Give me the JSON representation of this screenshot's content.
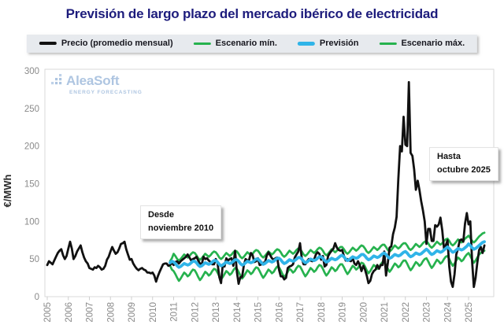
{
  "title": "Previsión de largo plazo del mercado ibérico de electricidad",
  "colors": {
    "title": "#1d1c7c",
    "price": "#111111",
    "forecast": "#30b4e8",
    "scenario": "#26b24e",
    "axis_text": "#8a8a8a",
    "plot_border": "#d9d9d9"
  },
  "watermark": {
    "name": "AleaSoft",
    "subtitle": "ENERGY FORECASTING"
  },
  "legend": {
    "items": [
      {
        "label": "Precio (promedio mensual)",
        "color": "#111111",
        "thickness": 4
      },
      {
        "label": "Escenario mín.",
        "color": "#26b24e",
        "thickness": 3
      },
      {
        "label": "Previsión",
        "color": "#30b4e8",
        "thickness": 5
      },
      {
        "label": "Escenario máx.",
        "color": "#26b24e",
        "thickness": 3
      }
    ]
  },
  "chart_data": {
    "type": "line",
    "title": "Previsión de largo plazo del mercado ibérico de electricidad",
    "xlabel": "",
    "ylabel": "€/MWh",
    "ylim": [
      0,
      300
    ],
    "yticks": [
      0,
      50,
      100,
      150,
      200,
      250,
      300
    ],
    "xticks": [
      2005,
      2006,
      2007,
      2008,
      2009,
      2010,
      2011,
      2012,
      2013,
      2014,
      2015,
      2016,
      2017,
      2018,
      2019,
      2020,
      2021,
      2022,
      2023,
      2024,
      2025
    ],
    "x_resolution": "monthly",
    "grid": false,
    "legend_position": "top",
    "annotations": [
      {
        "line1": "Desde",
        "line2": "noviembre 2010"
      },
      {
        "line1": "Hasta",
        "line2": "octubre 2025"
      }
    ],
    "series": [
      {
        "name": "Escenario mín.",
        "color": "#26b24e",
        "width": 2.7,
        "start_year": 2010,
        "start_month": 11,
        "values": [
          41,
          36,
          34,
          30,
          25,
          21,
          24,
          28,
          32,
          30,
          27,
          29,
          33,
          36,
          35,
          31,
          26,
          22,
          25,
          29,
          33,
          31,
          28,
          30,
          34,
          37,
          36,
          32,
          27,
          23,
          26,
          30,
          34,
          32,
          29,
          31,
          35,
          38,
          37,
          33,
          28,
          24,
          27,
          31,
          35,
          33,
          30,
          32,
          36,
          39,
          38,
          34,
          29,
          25,
          28,
          32,
          36,
          34,
          31,
          33,
          37,
          40,
          39,
          35,
          30,
          26,
          29,
          33,
          37,
          35,
          32,
          34,
          38,
          41,
          40,
          36,
          31,
          27,
          30,
          34,
          38,
          36,
          33,
          35,
          39,
          42,
          41,
          37,
          32,
          28,
          31,
          35,
          39,
          37,
          34,
          36,
          40,
          43,
          43,
          39,
          34,
          30,
          33,
          37,
          41,
          39,
          36,
          38,
          42,
          45,
          44,
          40,
          35,
          31,
          34,
          38,
          42,
          40,
          37,
          39,
          43,
          46,
          46,
          42,
          37,
          33,
          36,
          40,
          44,
          42,
          39,
          41,
          45,
          48,
          48,
          44,
          39,
          35,
          38,
          42,
          46,
          44,
          41,
          43,
          47,
          50,
          51,
          47,
          42,
          38,
          41,
          45,
          49,
          47,
          44,
          46,
          50,
          53,
          54,
          50,
          45,
          41,
          44,
          48,
          52,
          50,
          47,
          49,
          53,
          56,
          58,
          54,
          49,
          45,
          48,
          52,
          56,
          58,
          60,
          61
        ]
      },
      {
        "name": "Escenario máx.",
        "color": "#26b24e",
        "width": 2.7,
        "start_year": 2010,
        "start_month": 11,
        "values": [
          47,
          51,
          57,
          54,
          50,
          48,
          50,
          53,
          56,
          54,
          52,
          54,
          57,
          59,
          58,
          55,
          51,
          49,
          51,
          54,
          57,
          55,
          53,
          55,
          58,
          60,
          59,
          56,
          52,
          50,
          52,
          55,
          58,
          56,
          54,
          56,
          59,
          61,
          60,
          57,
          53,
          51,
          53,
          56,
          59,
          57,
          55,
          57,
          60,
          62,
          61,
          58,
          54,
          52,
          54,
          57,
          60,
          58,
          56,
          58,
          61,
          63,
          62,
          59,
          55,
          53,
          55,
          58,
          61,
          59,
          57,
          59,
          62,
          64,
          63,
          60,
          56,
          54,
          56,
          59,
          62,
          60,
          58,
          60,
          63,
          65,
          64,
          61,
          57,
          55,
          57,
          60,
          63,
          61,
          59,
          61,
          64,
          66,
          66,
          63,
          59,
          57,
          59,
          62,
          65,
          63,
          61,
          63,
          66,
          68,
          67,
          64,
          60,
          58,
          60,
          63,
          66,
          64,
          62,
          64,
          67,
          69,
          69,
          66,
          62,
          60,
          62,
          65,
          68,
          66,
          64,
          66,
          69,
          71,
          71,
          68,
          64,
          62,
          64,
          67,
          70,
          68,
          66,
          68,
          71,
          73,
          74,
          71,
          67,
          65,
          67,
          70,
          73,
          71,
          69,
          71,
          74,
          76,
          77,
          74,
          70,
          68,
          70,
          73,
          76,
          74,
          72,
          74,
          77,
          79,
          81,
          78,
          74,
          72,
          74,
          77,
          80,
          82,
          84,
          85
        ]
      },
      {
        "name": "Precio (promedio mensual)",
        "color": "#111111",
        "width": 2.8,
        "start_year": 2005,
        "start_month": 1,
        "values": [
          42,
          47,
          45,
          43,
          48,
          53,
          58,
          61,
          63,
          55,
          50,
          54,
          64,
          73,
          64,
          50,
          54,
          60,
          64,
          68,
          59,
          52,
          47,
          44,
          38,
          37,
          36,
          39,
          38,
          41,
          39,
          36,
          37,
          41,
          49,
          53,
          60,
          66,
          61,
          57,
          59,
          64,
          70,
          71,
          73,
          63,
          56,
          49,
          50,
          44,
          40,
          37,
          35,
          37,
          38,
          36,
          35,
          32,
          32,
          31,
          32,
          28,
          20,
          27,
          33,
          38,
          43,
          44,
          44,
          41,
          42,
          45,
          42,
          46,
          47,
          44,
          47,
          49,
          51,
          53,
          56,
          52,
          48,
          50,
          51,
          53,
          48,
          44,
          43,
          53,
          50,
          51,
          48,
          46,
          43,
          43,
          50,
          45,
          26,
          18,
          43,
          40,
          51,
          48,
          50,
          51,
          41,
          61,
          33,
          17,
          26,
          26,
          42,
          50,
          48,
          49,
          58,
          55,
          46,
          47,
          51,
          42,
          43,
          45,
          45,
          54,
          59,
          55,
          51,
          49,
          51,
          52,
          36,
          27,
          27,
          23,
          25,
          38,
          40,
          41,
          43,
          52,
          56,
          60,
          71,
          51,
          43,
          43,
          47,
          50,
          48,
          47,
          49,
          56,
          59,
          57,
          49,
          54,
          40,
          42,
          54,
          58,
          61,
          64,
          71,
          65,
          62,
          61,
          62,
          54,
          48,
          50,
          48,
          47,
          51,
          44,
          42,
          47,
          42,
          34,
          41,
          36,
          28,
          18,
          21,
          30,
          34,
          36,
          42,
          37,
          42,
          42,
          60,
          28,
          45,
          65,
          67,
          83,
          92,
          106,
          156,
          200,
          193,
          239,
          202,
          200,
          285,
          191,
          187,
          169,
          142,
          154,
          142,
          127,
          115,
          100,
          70,
          90,
          90,
          74,
          74,
          95,
          93,
          96,
          105,
          88,
          64,
          68,
          75,
          40,
          20,
          13,
          30,
          56,
          64,
          75,
          76,
          73,
          97,
          111,
          96,
          100,
          47,
          13,
          25,
          45,
          62,
          66,
          58,
          68
        ]
      },
      {
        "name": "Previsión",
        "color": "#30b4e8",
        "width": 3.8,
        "start_year": 2010,
        "start_month": 11,
        "values": [
          45,
          47,
          46,
          44,
          41,
          39,
          40,
          42,
          44,
          43,
          42,
          43,
          45,
          47,
          47,
          45,
          42,
          40,
          41,
          43,
          45,
          44,
          43,
          44,
          46,
          48,
          48,
          46,
          43,
          41,
          42,
          44,
          46,
          45,
          44,
          45,
          47,
          49,
          49,
          47,
          44,
          42,
          43,
          45,
          47,
          46,
          45,
          46,
          48,
          50,
          50,
          48,
          45,
          43,
          44,
          46,
          48,
          47,
          46,
          47,
          49,
          51,
          51,
          49,
          46,
          44,
          45,
          47,
          49,
          48,
          47,
          48,
          50,
          52,
          52,
          50,
          47,
          45,
          46,
          48,
          50,
          49,
          48,
          49,
          51,
          53,
          53,
          51,
          48,
          46,
          47,
          49,
          51,
          50,
          49,
          50,
          52,
          54,
          55,
          53,
          50,
          48,
          49,
          51,
          53,
          52,
          51,
          52,
          54,
          56,
          56,
          54,
          51,
          49,
          50,
          52,
          54,
          53,
          52,
          53,
          55,
          57,
          58,
          56,
          53,
          51,
          52,
          54,
          56,
          55,
          54,
          55,
          57,
          59,
          60,
          58,
          55,
          53,
          54,
          56,
          58,
          57,
          56,
          57,
          59,
          61,
          63,
          61,
          58,
          56,
          57,
          59,
          61,
          60,
          59,
          60,
          62,
          64,
          66,
          64,
          61,
          59,
          60,
          62,
          64,
          63,
          62,
          63,
          65,
          67,
          70,
          68,
          65,
          63,
          64,
          66,
          68,
          70,
          72,
          73
        ]
      }
    ]
  }
}
